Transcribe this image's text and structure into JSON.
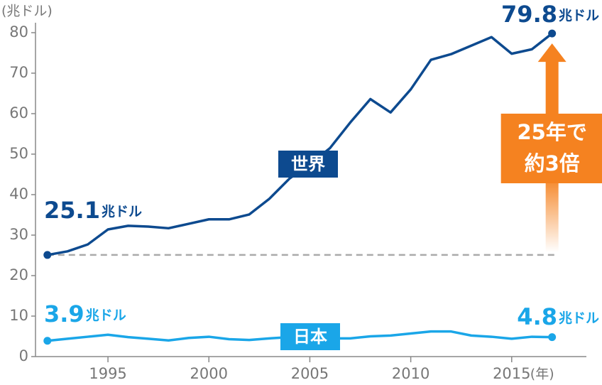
{
  "chart_data": {
    "type": "line",
    "y_unit": "(兆ドル)",
    "x_unit": "(年)",
    "value_unit": "兆ドル",
    "x": [
      1992,
      1993,
      1994,
      1995,
      1996,
      1997,
      1998,
      1999,
      2000,
      2001,
      2002,
      2003,
      2004,
      2005,
      2006,
      2007,
      2008,
      2009,
      2010,
      2011,
      2012,
      2013,
      2014,
      2015,
      2016,
      2017
    ],
    "series": [
      {
        "name": "世界",
        "color": "#0d4a8f",
        "values": [
          25.1,
          26.0,
          27.7,
          31.4,
          32.3,
          32.1,
          31.7,
          32.8,
          33.9,
          33.9,
          35.1,
          39.0,
          44.0,
          47.5,
          51.5,
          57.8,
          63.6,
          60.3,
          66.0,
          73.3,
          74.7,
          76.8,
          78.9,
          74.8,
          75.9,
          79.8
        ]
      },
      {
        "name": "日本",
        "color": "#1aa6e8",
        "values": [
          3.9,
          4.4,
          4.9,
          5.4,
          4.8,
          4.4,
          4.0,
          4.6,
          4.9,
          4.3,
          4.1,
          4.5,
          4.8,
          4.8,
          4.5,
          4.5,
          5.0,
          5.2,
          5.7,
          6.2,
          6.2,
          5.2,
          4.9,
          4.4,
          4.9,
          4.8
        ]
      }
    ],
    "annotation": [
      "25年で",
      "約3倍"
    ],
    "annotation_color": "#f58220",
    "xlim": [
      1991.41,
      2018.7
    ],
    "ylim": [
      0,
      80
    ],
    "xticks": [
      1995,
      2000,
      2005,
      2010,
      2015
    ],
    "yticks": [
      0,
      10,
      20,
      30,
      40,
      50,
      60,
      70,
      80
    ]
  }
}
